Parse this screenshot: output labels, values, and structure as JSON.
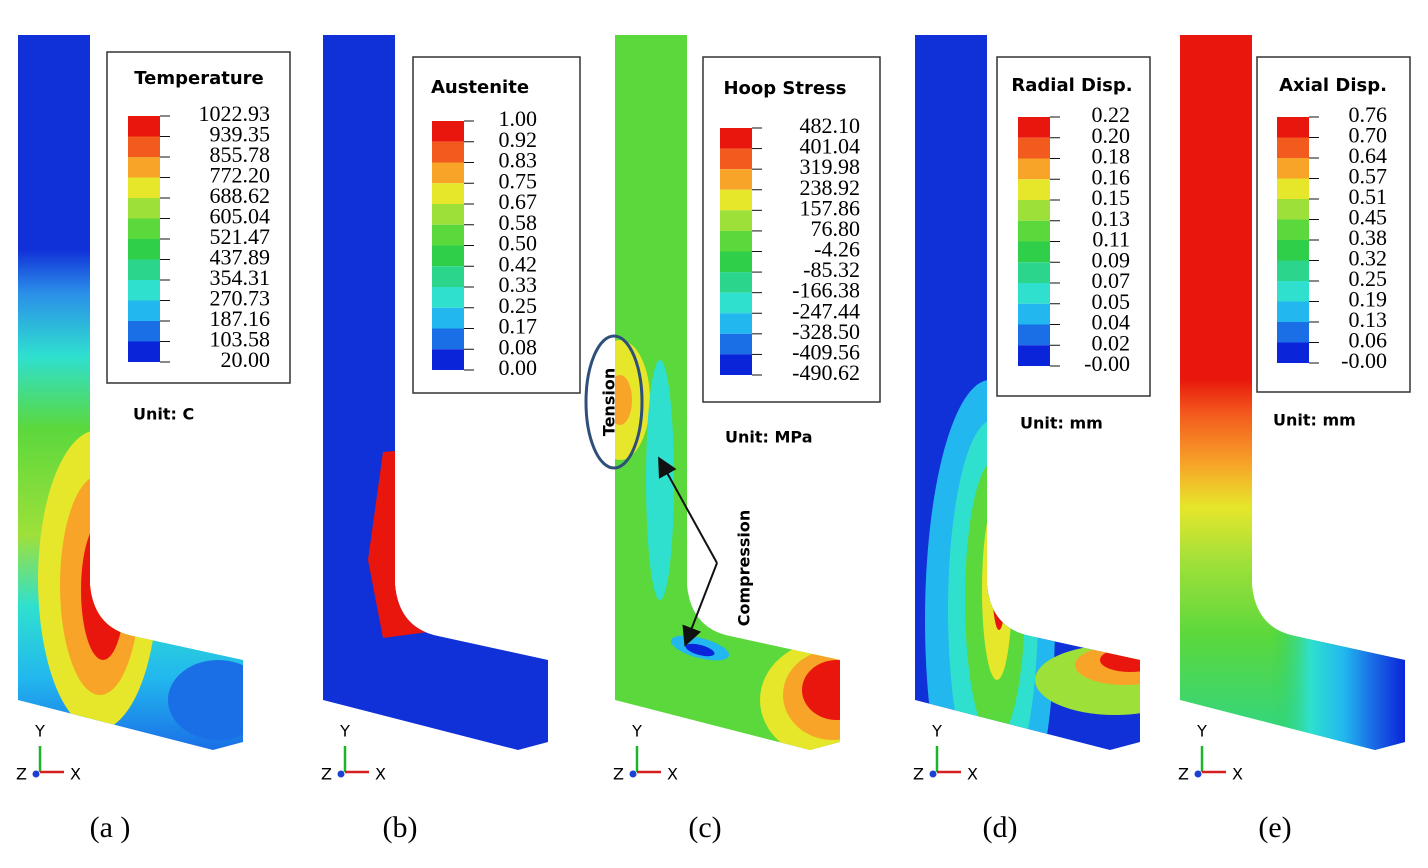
{
  "panels": [
    {
      "legend": {
        "title": "Temperature",
        "labels": [
          "1022.93",
          "939.35",
          "855.78",
          "772.20",
          "688.62",
          "605.04",
          "521.47",
          "437.89",
          "354.31",
          "270.73",
          "187.16",
          "103.58",
          "20.00"
        ]
      },
      "unit": "Unit: C",
      "triad": {
        "y": "Y",
        "z": "Z",
        "x": "X"
      },
      "caption": "(a )"
    },
    {
      "legend": {
        "title": "Austenite",
        "labels": [
          "1.00",
          "0.92",
          "0.83",
          "0.75",
          "0.67",
          "0.58",
          "0.50",
          "0.42",
          "0.33",
          "0.25",
          "0.17",
          "0.08",
          "0.00"
        ]
      },
      "triad": {
        "y": "Y",
        "z": "Z",
        "x": "X"
      },
      "caption": "(b)"
    },
    {
      "legend": {
        "title": "Hoop Stress",
        "labels": [
          "482.10",
          "401.04",
          "319.98",
          "238.92",
          "157.86",
          "76.80",
          "-4.26",
          "-85.32",
          "-166.38",
          "-247.44",
          "-328.50",
          "-409.56",
          "-490.62"
        ]
      },
      "unit": "Unit: MPa",
      "triad": {
        "y": "Y",
        "z": "Z",
        "x": "X"
      },
      "caption": "(c)"
    },
    {
      "legend": {
        "title": "Radial Disp.",
        "labels": [
          "0.22",
          "0.20",
          "0.18",
          "0.16",
          "0.15",
          "0.13",
          "0.11",
          "0.09",
          "0.07",
          "0.05",
          "0.04",
          "0.02",
          "-0.00"
        ]
      },
      "unit": "Unit: mm",
      "triad": {
        "y": "Y",
        "z": "Z",
        "x": "X"
      },
      "caption": "(d)"
    },
    {
      "legend": {
        "title": "Axial Disp.",
        "labels": [
          "0.76",
          "0.70",
          "0.64",
          "0.57",
          "0.51",
          "0.45",
          "0.38",
          "0.32",
          "0.25",
          "0.19",
          "0.13",
          "0.06",
          "-0.00"
        ]
      },
      "unit": "Unit: mm",
      "triad": {
        "y": "Y",
        "z": "Z",
        "x": "X"
      },
      "caption": "(e)"
    }
  ],
  "annotations": {
    "tension": "Tension",
    "compression": "Compression"
  }
}
